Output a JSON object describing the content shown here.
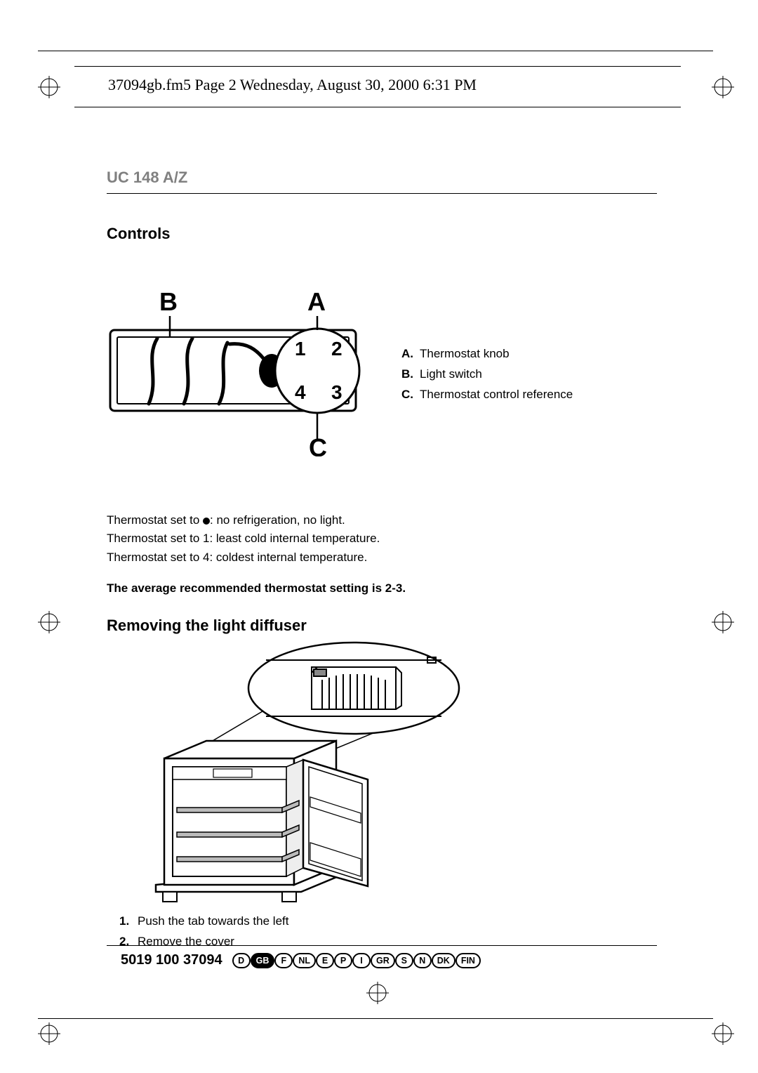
{
  "page_header": "37094gb.fm5  Page 2  Wednesday, August 30, 2000  6:31 PM",
  "model": "UC 148 A/Z",
  "sections": {
    "controls": "Controls",
    "removing": "Removing the light diffuser"
  },
  "legend": {
    "a_label": "A.",
    "a_text": "Thermostat knob",
    "b_label": "B.",
    "b_text": "Light switch",
    "c_label": "C.",
    "c_text": "Thermostat control reference"
  },
  "thermo": {
    "line1a": "Thermostat set to ",
    "line1b": ":  no refrigeration, no light.",
    "line2": "Thermostat set to 1:  least cold internal temperature.",
    "line3": "Thermostat set to 4:  coldest internal temperature."
  },
  "recommended": "The average recommended thermostat setting is 2-3.",
  "steps": {
    "n1": "1.",
    "t1": "Push the tab towards the left",
    "n2": "2.",
    "t2": "Remove the cover"
  },
  "footer": {
    "code": "5019 100 37094",
    "langs": [
      "D",
      "GB",
      "F",
      "NL",
      "E",
      "P",
      "I",
      "GR",
      "S",
      "N",
      "DK",
      "FIN"
    ],
    "active": "GB"
  },
  "diagram_controls": {
    "labels": {
      "B": "B",
      "A": "A",
      "C": "C",
      "n1": "1",
      "n2": "2",
      "n3": "3",
      "n4": "4"
    }
  }
}
